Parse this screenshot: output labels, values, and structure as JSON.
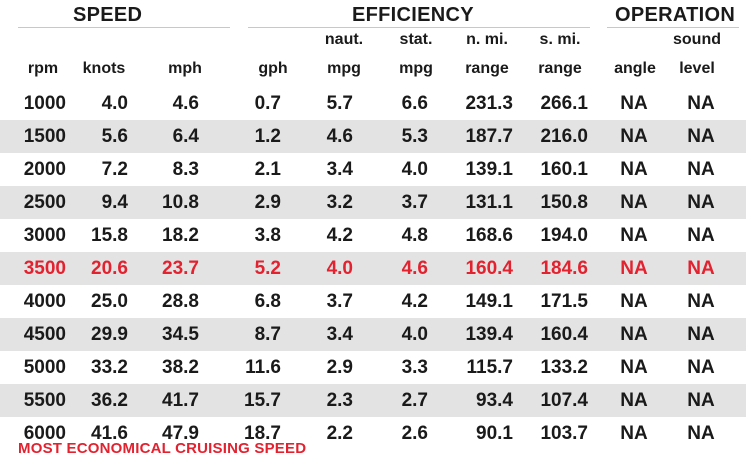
{
  "chart_data": {
    "type": "table",
    "groups": [
      "SPEED",
      "EFFICIENCY",
      "OPERATION"
    ],
    "columns": [
      {
        "top": "",
        "bottom": "rpm"
      },
      {
        "top": "",
        "bottom": "knots"
      },
      {
        "top": "",
        "bottom": "mph"
      },
      {
        "top": "",
        "bottom": "gph"
      },
      {
        "top": "naut.",
        "bottom": "mpg"
      },
      {
        "top": "stat.",
        "bottom": "mpg"
      },
      {
        "top": "n. mi.",
        "bottom": "range"
      },
      {
        "top": "s. mi.",
        "bottom": "range"
      },
      {
        "top": "",
        "bottom": "angle"
      },
      {
        "top": "sound",
        "bottom": "level"
      }
    ],
    "rows": [
      [
        "1000",
        "4.0",
        "4.6",
        "0.7",
        "5.7",
        "6.6",
        "231.3",
        "266.1",
        "NA",
        "NA"
      ],
      [
        "1500",
        "5.6",
        "6.4",
        "1.2",
        "4.6",
        "5.3",
        "187.7",
        "216.0",
        "NA",
        "NA"
      ],
      [
        "2000",
        "7.2",
        "8.3",
        "2.1",
        "3.4",
        "4.0",
        "139.1",
        "160.1",
        "NA",
        "NA"
      ],
      [
        "2500",
        "9.4",
        "10.8",
        "2.9",
        "3.2",
        "3.7",
        "131.1",
        "150.8",
        "NA",
        "NA"
      ],
      [
        "3000",
        "15.8",
        "18.2",
        "3.8",
        "4.2",
        "4.8",
        "168.6",
        "194.0",
        "NA",
        "NA"
      ],
      [
        "3500",
        "20.6",
        "23.7",
        "5.2",
        "4.0",
        "4.6",
        "160.4",
        "184.6",
        "NA",
        "NA"
      ],
      [
        "4000",
        "25.0",
        "28.8",
        "6.8",
        "3.7",
        "4.2",
        "149.1",
        "171.5",
        "NA",
        "NA"
      ],
      [
        "4500",
        "29.9",
        "34.5",
        "8.7",
        "3.4",
        "4.0",
        "139.4",
        "160.4",
        "NA",
        "NA"
      ],
      [
        "5000",
        "33.2",
        "38.2",
        "11.6",
        "2.9",
        "3.3",
        "115.7",
        "133.2",
        "NA",
        "NA"
      ],
      [
        "5500",
        "36.2",
        "41.7",
        "15.7",
        "2.3",
        "2.7",
        "93.4",
        "107.4",
        "NA",
        "NA"
      ],
      [
        "6000",
        "41.6",
        "47.9",
        "18.7",
        "2.2",
        "2.6",
        "90.1",
        "103.7",
        "NA",
        "NA"
      ]
    ],
    "highlight_row_index": 5,
    "highlight_color": "#e32230",
    "footnote": "MOST ECONOMICAL CRUISING SPEED"
  }
}
